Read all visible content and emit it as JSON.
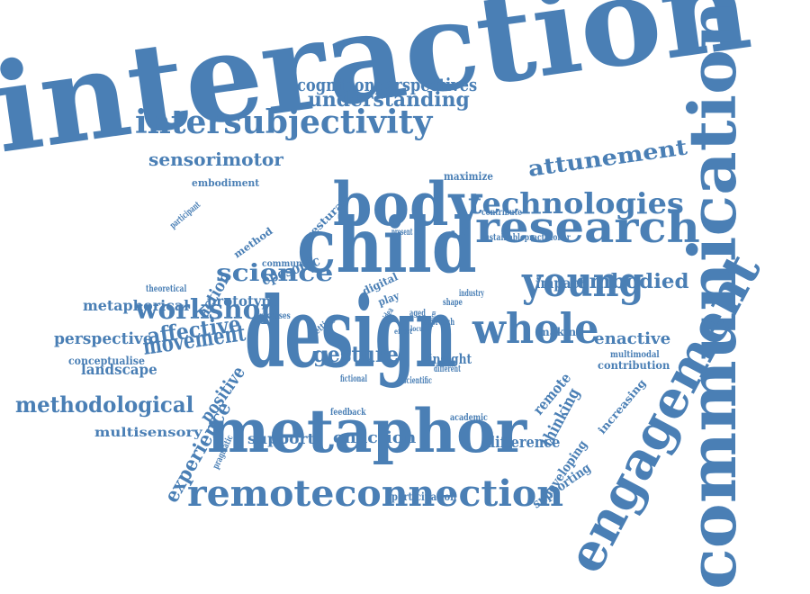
{
  "color": "#4a7fb5",
  "words": [
    {
      "text": "interaction",
      "slot": "a"
    },
    {
      "text": "communication",
      "slot": "b"
    },
    {
      "text": "design",
      "slot": "c"
    },
    {
      "text": "child",
      "slot": "d"
    },
    {
      "text": "engagement",
      "slot": "e"
    },
    {
      "text": "body",
      "slot": "f"
    },
    {
      "text": "research",
      "slot": "g"
    },
    {
      "text": "metaphor",
      "slot": "h"
    },
    {
      "text": "young",
      "slot": "i"
    },
    {
      "text": "whole",
      "slot": "j"
    },
    {
      "text": "remoteconnection",
      "slot": "k"
    },
    {
      "text": "technologies",
      "slot": "l"
    },
    {
      "text": "intersubjectivity",
      "slot": "m"
    },
    {
      "text": "attunement",
      "slot": "n"
    },
    {
      "text": "workshop",
      "slot": "o"
    },
    {
      "text": "science",
      "slot": "p"
    },
    {
      "text": "movement",
      "slot": "q"
    },
    {
      "text": "methodological",
      "slot": "r"
    },
    {
      "text": "embodied",
      "slot": "s"
    },
    {
      "text": "gesture",
      "slot": "t"
    },
    {
      "text": "understanding",
      "slot": "u"
    },
    {
      "text": "cognitionperspectives",
      "slot": "v"
    },
    {
      "text": "sensorimotor",
      "slot": "w"
    },
    {
      "text": "affective",
      "slot": "x"
    },
    {
      "text": "experience",
      "slot": "y"
    },
    {
      "text": "thinking",
      "slot": "z"
    },
    {
      "text": "perspective",
      "slot": "aa"
    },
    {
      "text": "enaction",
      "slot": "ab"
    },
    {
      "text": "difference",
      "slot": "ac"
    },
    {
      "text": "landscape",
      "slot": "ad"
    },
    {
      "text": "metaphorical",
      "slot": "ae"
    },
    {
      "text": "impact",
      "slot": "af"
    },
    {
      "text": "enactive",
      "slot": "ag"
    },
    {
      "text": "remote",
      "slot": "ah"
    },
    {
      "text": "positive",
      "slot": "ai"
    },
    {
      "text": "developing",
      "slot": "aj"
    },
    {
      "text": "support",
      "slot": "ak"
    },
    {
      "text": "multisensory",
      "slot": "al"
    },
    {
      "text": "insight",
      "slot": "am"
    },
    {
      "text": "supporting",
      "slot": "an"
    },
    {
      "text": "prototype",
      "slot": "ao"
    },
    {
      "text": "epesonic",
      "slot": "ap"
    },
    {
      "text": "conceptualise",
      "slot": "aq"
    },
    {
      "text": "making",
      "slot": "ar"
    },
    {
      "text": "increasing",
      "slot": "as"
    },
    {
      "text": "contribution",
      "slot": "at"
    },
    {
      "text": "maximize",
      "slot": "au"
    },
    {
      "text": "embodiment",
      "slot": "av"
    },
    {
      "text": "participation",
      "slot": "aw"
    },
    {
      "text": "gestural",
      "slot": "ax"
    },
    {
      "text": "method",
      "slot": "ay"
    },
    {
      "text": "action",
      "slot": "az"
    },
    {
      "text": "digital",
      "slot": "ba"
    },
    {
      "text": "play",
      "slot": "bb"
    },
    {
      "text": "community",
      "slot": "bc"
    },
    {
      "text": "sustainablepractitioner",
      "slot": "bd"
    },
    {
      "text": "contribute",
      "slot": "be"
    },
    {
      "text": "multimodal",
      "slot": "bf"
    },
    {
      "text": "feedback",
      "slot": "bg"
    },
    {
      "text": "academic",
      "slot": "bh"
    },
    {
      "text": "processes",
      "slot": "bi"
    },
    {
      "text": "theoretical",
      "slot": "bj"
    },
    {
      "text": "setting",
      "slot": "bk"
    },
    {
      "text": "pragmatic",
      "slot": "bl"
    },
    {
      "text": "participant",
      "slot": "bm"
    },
    {
      "text": "fictional",
      "slot": "bn"
    },
    {
      "text": "scientific",
      "slot": "bo"
    },
    {
      "text": "different",
      "slot": "bp"
    },
    {
      "text": "industry",
      "slot": "bq"
    },
    {
      "text": "shape",
      "slot": "br"
    },
    {
      "text": "present",
      "slot": "bs"
    },
    {
      "text": "approach",
      "slot": "bt"
    },
    {
      "text": "aged",
      "slot": "bu"
    },
    {
      "text": "idea",
      "slot": "bv"
    },
    {
      "text": "effect",
      "slot": "bw"
    },
    {
      "text": "locus",
      "slot": "bx"
    },
    {
      "text": "form",
      "slot": "by"
    }
  ]
}
